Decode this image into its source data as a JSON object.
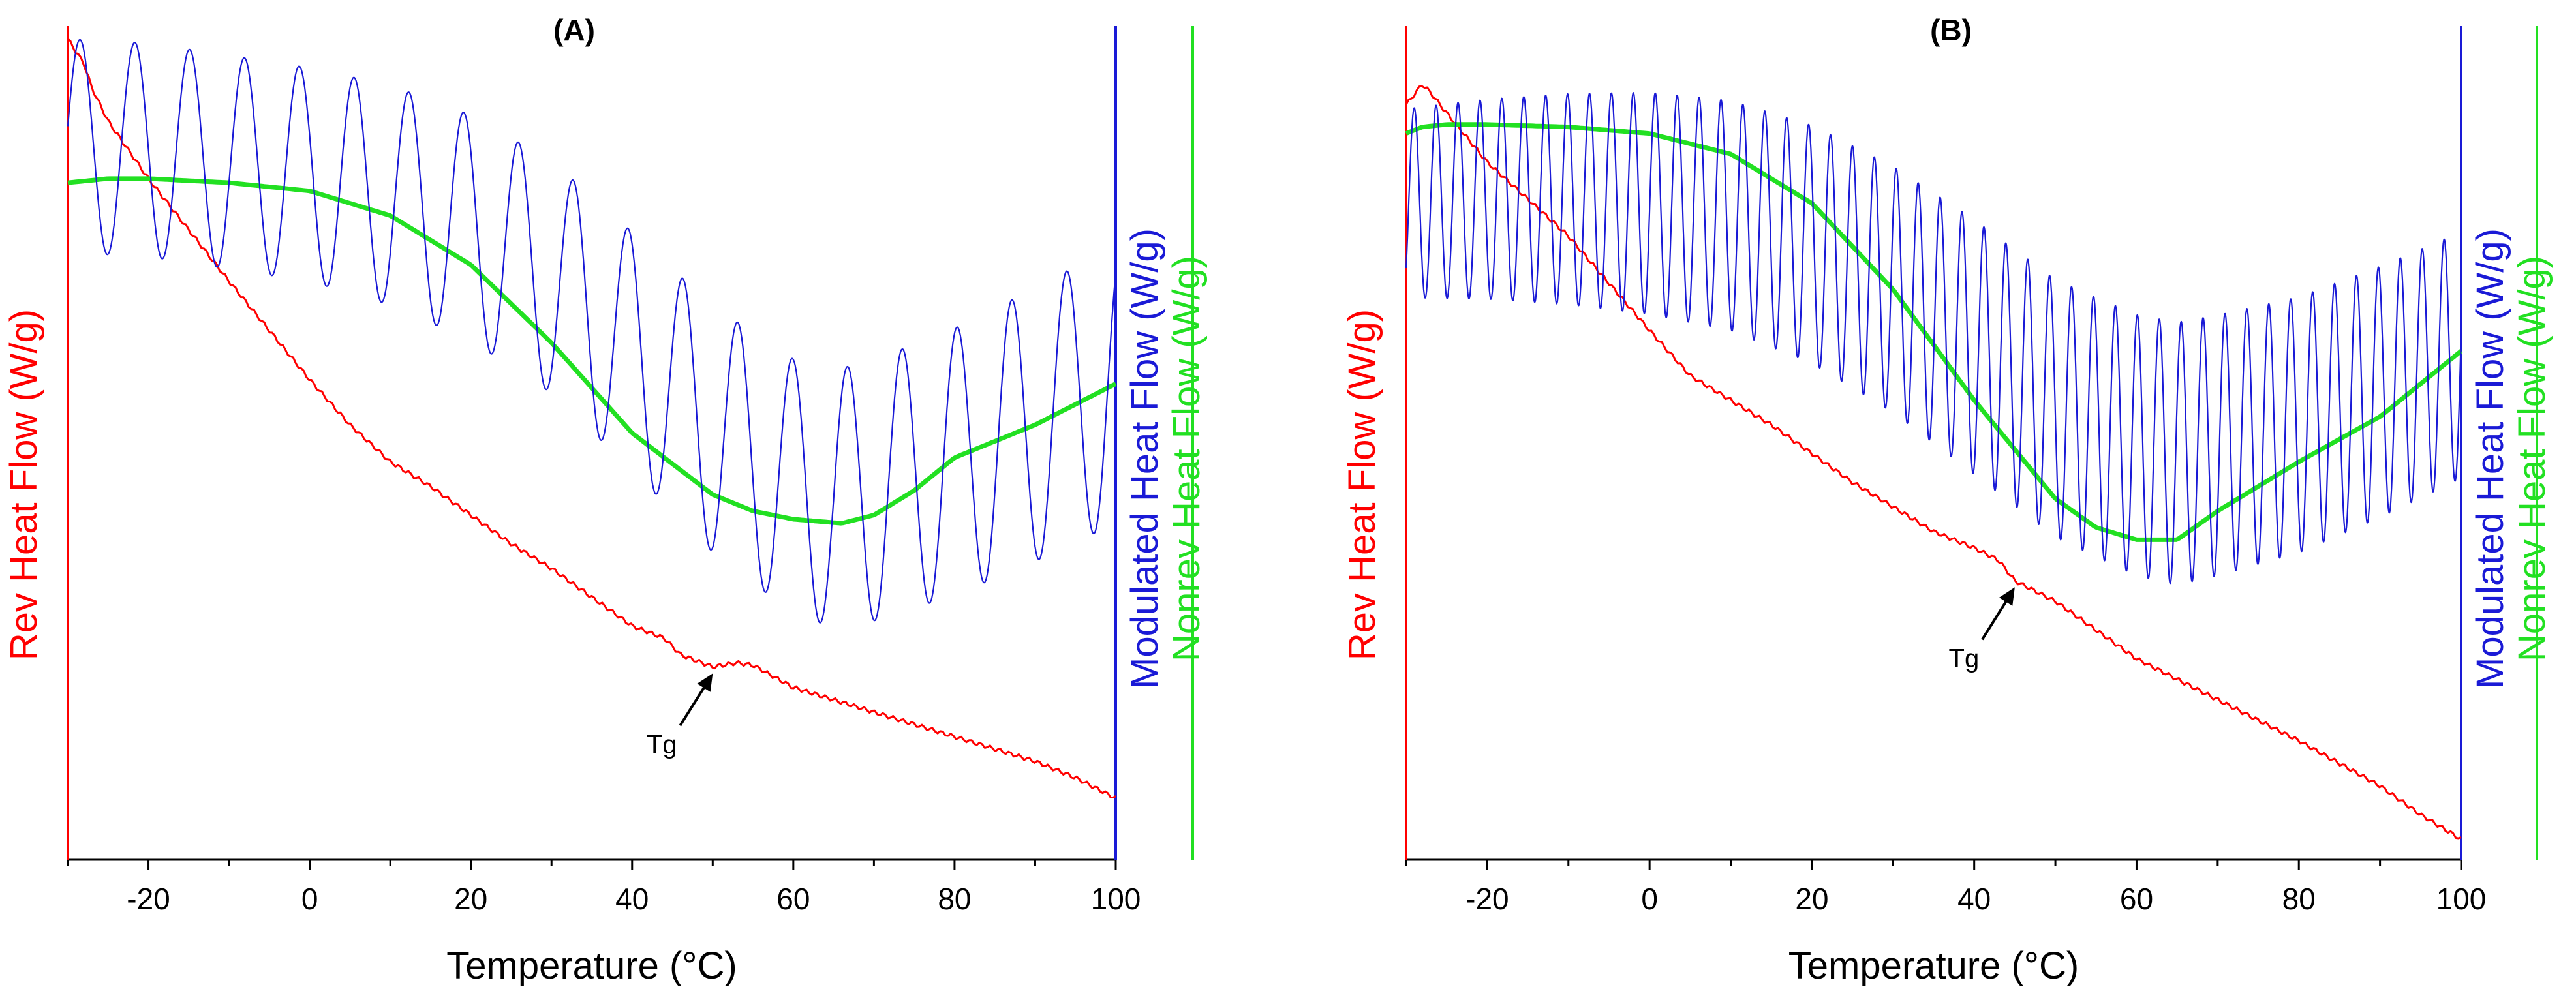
{
  "chart_data": [
    {
      "type": "line",
      "panel": "A",
      "title": "(A)",
      "xlabel": "Temperature (°C)",
      "xlim": [
        -30,
        100
      ],
      "xticks": [
        -20,
        0,
        20,
        40,
        60,
        80,
        100
      ],
      "ylabels": {
        "rev": "Rev Heat Flow (W/g)",
        "modulated": "Modulated Heat Flow (W/g)",
        "nonrev": "Nonrev Heat Flow (W/g)"
      },
      "colors": {
        "rev": "#ff0000",
        "modulated": "#1a1ad6",
        "nonrev": "#22e022"
      },
      "annotation": {
        "text": "Tg",
        "x": 50
      },
      "series": [
        {
          "name": "Rev Heat Flow",
          "axis": "rev",
          "ylim": [
            0,
            100
          ],
          "x": [
            -30,
            -29,
            -28,
            -27,
            -25,
            -20,
            -10,
            0,
            5,
            10,
            15,
            20,
            25,
            30,
            35,
            40,
            44,
            46,
            50,
            53,
            55,
            60,
            65,
            70,
            75,
            80,
            85,
            90,
            95,
            100
          ],
          "y": [
            100,
            98.5,
            97,
            94,
            90,
            83,
            70.5,
            58.5,
            53,
            48.5,
            45.5,
            42,
            38.5,
            35.5,
            32,
            28.5,
            27,
            25,
            23.5,
            24,
            23.7,
            21,
            19.5,
            18,
            16.5,
            15,
            13.5,
            12,
            10,
            7.5
          ]
        },
        {
          "name": "Nonrev Heat Flow",
          "axis": "nonrev",
          "ylim": [
            0,
            100
          ],
          "x": [
            -30,
            -25,
            -20,
            -10,
            0,
            10,
            20,
            30,
            40,
            50,
            55,
            60,
            66,
            70,
            75,
            80,
            90,
            100
          ],
          "y": [
            82.5,
            83,
            83,
            82.5,
            81.5,
            78.5,
            72.5,
            63,
            52,
            44.5,
            42.5,
            41.5,
            41,
            42,
            45,
            49,
            53,
            58
          ]
        },
        {
          "name": "Modulated Heat Flow",
          "axis": "modulated",
          "ylim": [
            0,
            100
          ],
          "period": 6.8,
          "phase": -28.5,
          "center_x": [
            -30,
            -20,
            -10,
            0,
            10,
            20,
            30,
            40,
            50,
            60,
            65,
            70,
            80,
            90,
            100
          ],
          "center_y": [
            87,
            86.5,
            85,
            83.5,
            81,
            77,
            71,
            62,
            52.5,
            45.5,
            44,
            45,
            48.5,
            53,
            58
          ],
          "amplitude_x": [
            -30,
            0,
            40,
            60,
            100
          ],
          "amplitude": [
            13,
            13,
            14.5,
            15.5,
            17
          ]
        }
      ]
    },
    {
      "type": "line",
      "panel": "B",
      "title": "(B)",
      "xlabel": "Temperature (°C)",
      "xlim": [
        -30,
        100
      ],
      "xticks": [
        -20,
        0,
        20,
        40,
        60,
        80,
        100
      ],
      "ylabels": {
        "rev": "Rev Heat Flow (W/g)",
        "modulated": "Modulated Heat Flow (W/g)",
        "nonrev": "Nonrev Heat Flow (W/g)"
      },
      "colors": {
        "rev": "#ff0000",
        "modulated": "#1a1ad6",
        "nonrev": "#22e022"
      },
      "annotation": {
        "text": "Tg",
        "x": 45
      },
      "series": [
        {
          "name": "Rev Heat Flow",
          "axis": "rev",
          "ylim": [
            0,
            100
          ],
          "x": [
            -30,
            -28,
            -27,
            -25,
            -20,
            -10,
            0,
            5,
            10,
            15,
            20,
            25,
            30,
            35,
            40,
            43,
            45,
            50,
            55,
            60,
            70,
            80,
            90,
            95,
            100
          ],
          "y": [
            92,
            94.5,
            93.5,
            91,
            85,
            76,
            64.5,
            59,
            56,
            53,
            49.5,
            46,
            43,
            40,
            38,
            36.5,
            34,
            31.5,
            28,
            24.5,
            19.5,
            14.5,
            9,
            5.5,
            2.5
          ]
        },
        {
          "name": "Nonrev Heat Flow",
          "axis": "nonrev",
          "ylim": [
            0,
            100
          ],
          "x": [
            -30,
            -28,
            -25,
            -20,
            -10,
            0,
            10,
            20,
            30,
            40,
            50,
            55,
            60,
            65,
            70,
            80,
            90,
            100
          ],
          "y": [
            88.5,
            89.3,
            89.6,
            89.6,
            89.3,
            88.5,
            86,
            80,
            69.5,
            56,
            44,
            40.5,
            39,
            39,
            42.5,
            48.5,
            54,
            62
          ]
        },
        {
          "name": "Modulated Heat Flow",
          "axis": "modulated",
          "ylim": [
            0,
            100
          ],
          "period": 2.7,
          "phase": -29.0,
          "center_x": [
            -30,
            -20,
            -10,
            0,
            10,
            20,
            30,
            40,
            50,
            60,
            65,
            70,
            80,
            90,
            100
          ],
          "center_y": [
            80,
            80.5,
            80.5,
            80,
            78.5,
            75,
            69.5,
            62.5,
            55,
            50.5,
            49.5,
            50.5,
            53,
            57,
            61.5
          ],
          "amplitude_x": [
            -30,
            0,
            40,
            65,
            100
          ],
          "amplitude": [
            11.5,
            13.5,
            15.5,
            16,
            15
          ]
        }
      ]
    }
  ]
}
